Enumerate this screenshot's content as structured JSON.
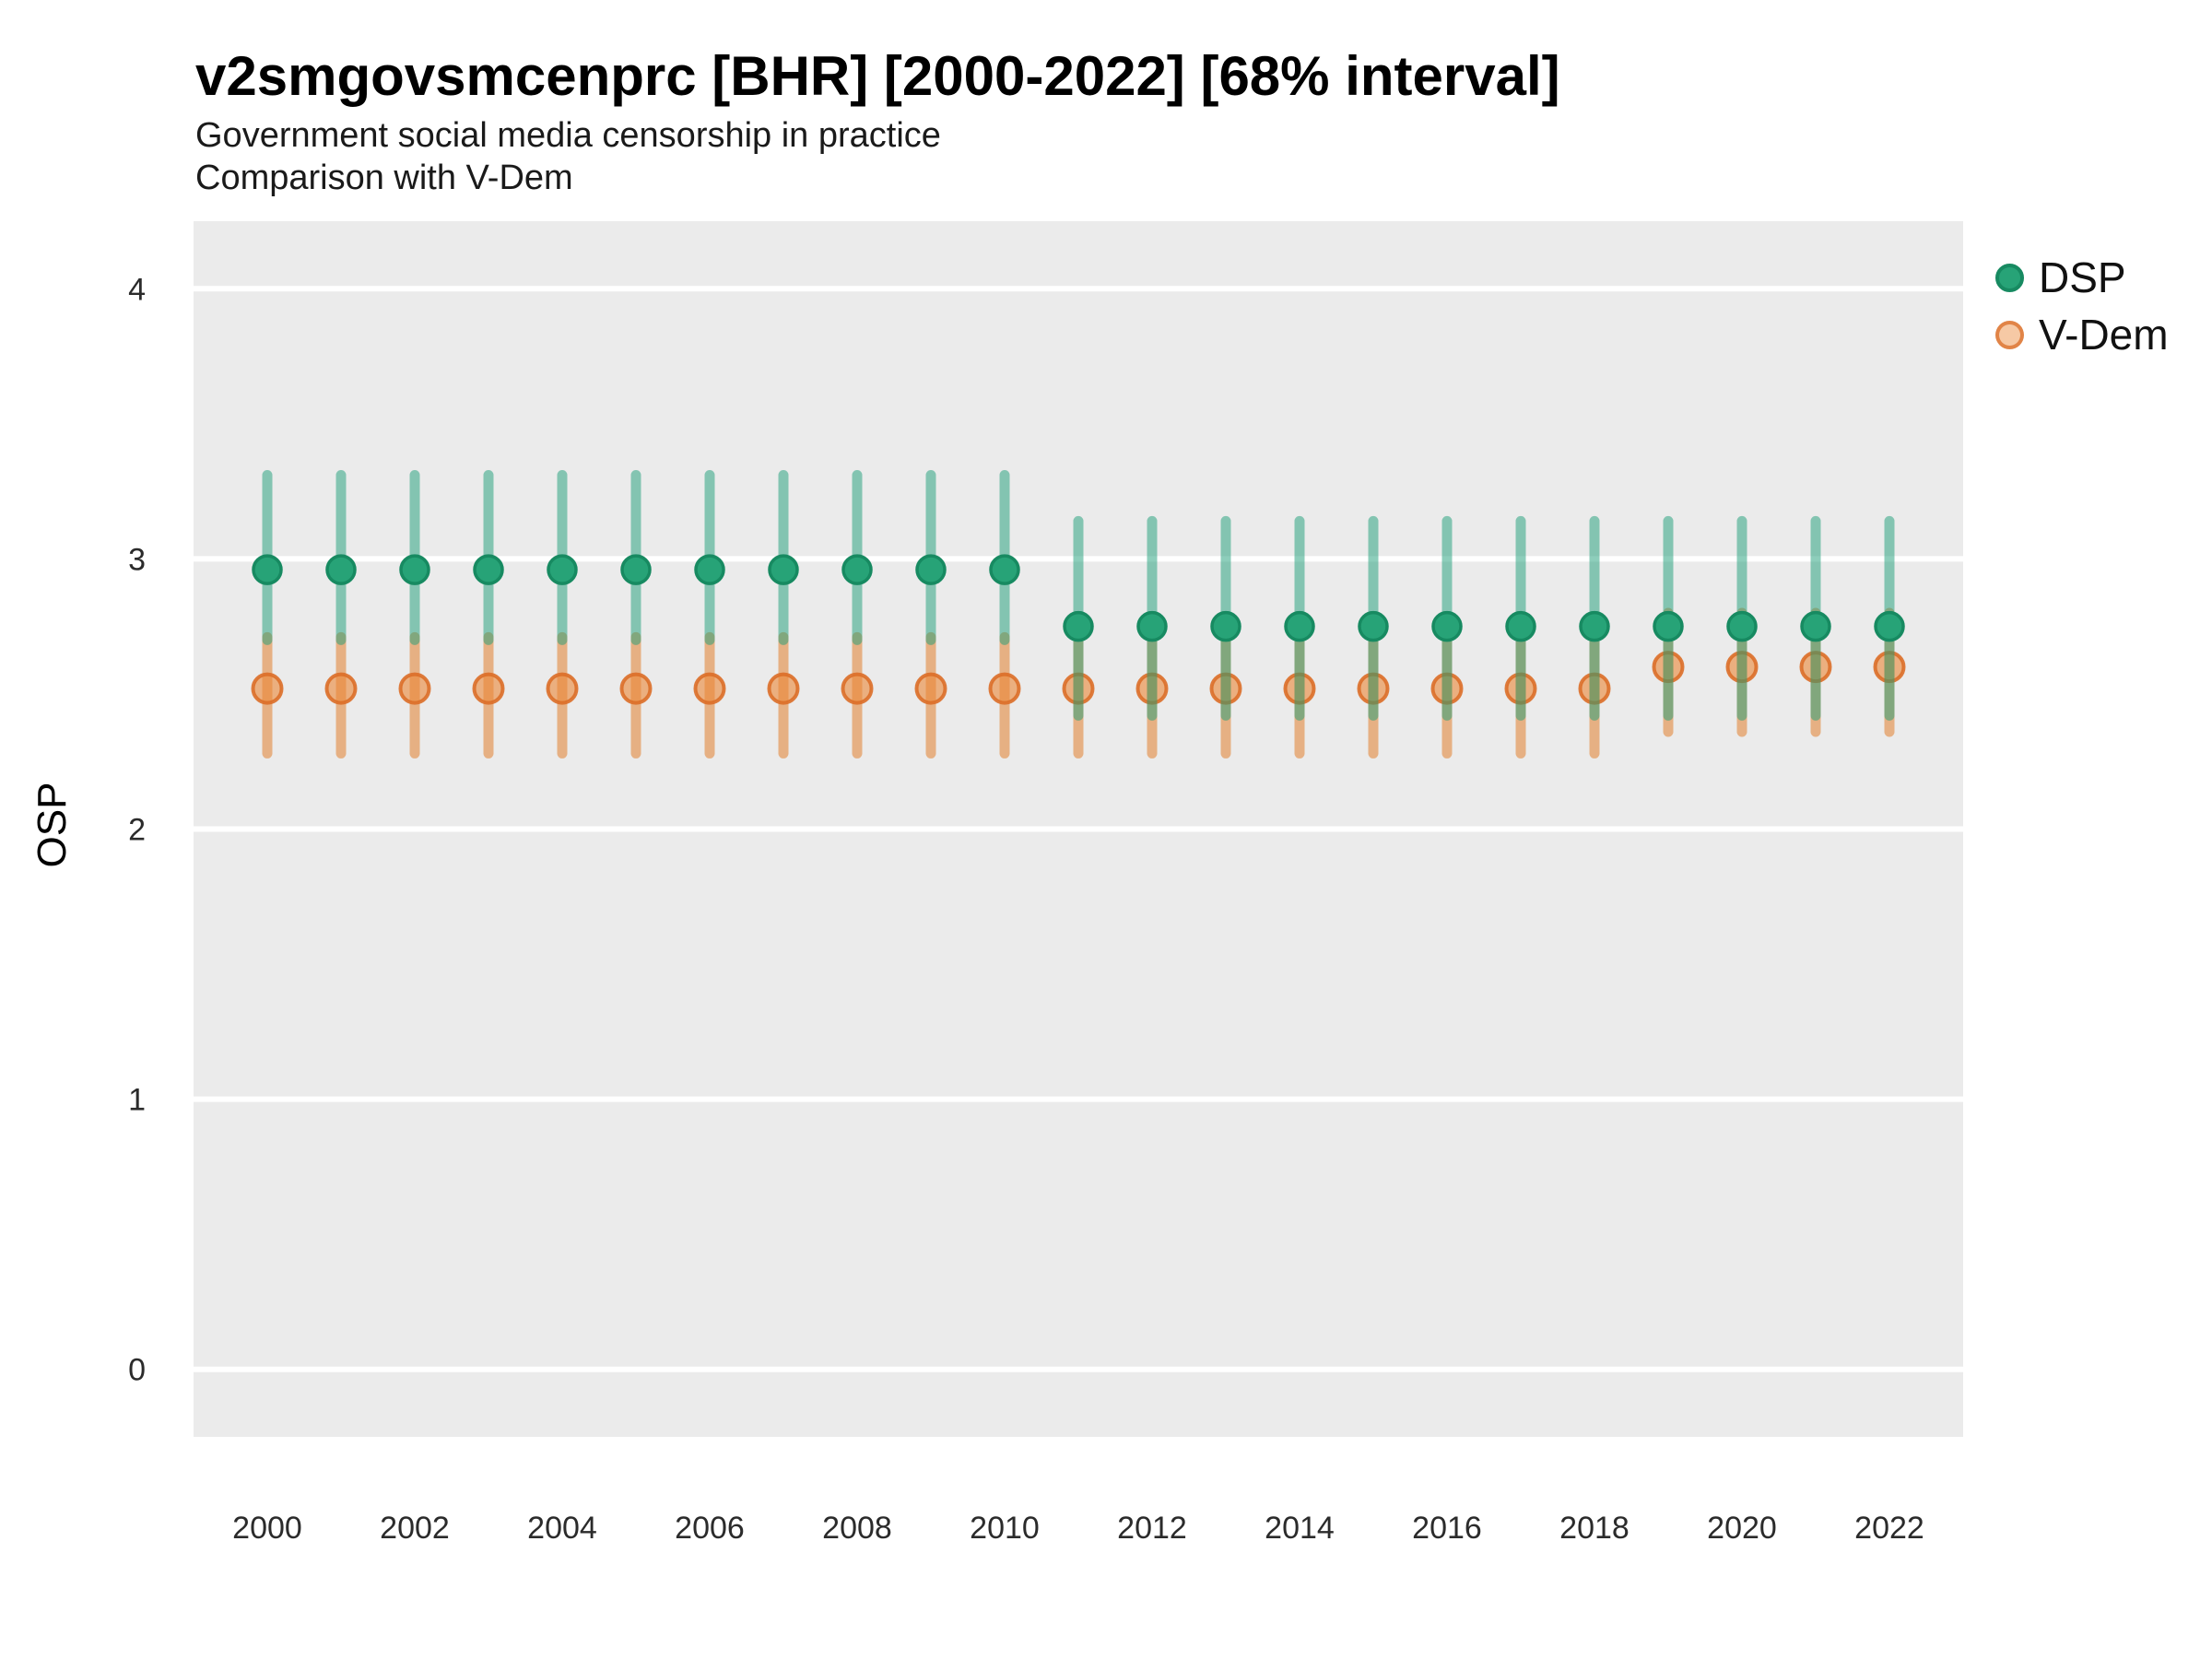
{
  "title": "v2smgovsmcenprc [BHR] [2000-2022] [68% interval]",
  "subtitle_line1": "Government social media censorship in practice",
  "subtitle_line2": "Comparison with V-Dem",
  "y_axis_title": "OSP",
  "legend": {
    "position": "right",
    "items": [
      {
        "id": "dsp",
        "label": "DSP"
      },
      {
        "id": "vdem",
        "label": "V-Dem"
      }
    ]
  },
  "colors": {
    "panel_bg": "#ebebeb",
    "gridline": "#ffffff",
    "axis_text": "#2b2b2b",
    "dsp_point_fill": "#27a377",
    "dsp_point_stroke": "#178a61",
    "dsp_bar": "rgba(27,158,119,0.5)",
    "vdem_point_fill": "rgba(235,135,55,0.6)",
    "vdem_point_stroke": "rgba(219,110,40,0.9)",
    "vdem_bar": "rgba(226,127,45,0.55)"
  },
  "chart_data": {
    "type": "pointrange",
    "title": "v2smgovsmcenprc [BHR] [2000-2022] [68% interval]",
    "xlabel": "",
    "ylabel": "OSP",
    "interval": "68%",
    "x": [
      2000,
      2001,
      2002,
      2003,
      2004,
      2005,
      2006,
      2007,
      2008,
      2009,
      2010,
      2011,
      2012,
      2013,
      2014,
      2015,
      2016,
      2017,
      2018,
      2019,
      2020,
      2021,
      2022
    ],
    "xticks": [
      2000,
      2002,
      2004,
      2006,
      2008,
      2010,
      2012,
      2014,
      2016,
      2018,
      2020,
      2022
    ],
    "yticks": [
      0,
      1,
      2,
      3,
      4
    ],
    "xlim": [
      1999,
      2023
    ],
    "ylim": [
      -0.25,
      4.25
    ],
    "grid": "horizontal-major-only",
    "legend_position": "right",
    "series": [
      {
        "id": "dsp",
        "name": "DSP",
        "mean": [
          2.96,
          2.96,
          2.96,
          2.96,
          2.96,
          2.96,
          2.96,
          2.96,
          2.96,
          2.96,
          2.96,
          2.75,
          2.75,
          2.75,
          2.75,
          2.75,
          2.75,
          2.75,
          2.75,
          2.75,
          2.75,
          2.75,
          2.75
        ],
        "lower": [
          2.7,
          2.7,
          2.7,
          2.7,
          2.7,
          2.7,
          2.7,
          2.7,
          2.7,
          2.7,
          2.7,
          2.42,
          2.42,
          2.42,
          2.42,
          2.42,
          2.42,
          2.42,
          2.42,
          2.42,
          2.42,
          2.42,
          2.42
        ],
        "upper": [
          3.31,
          3.31,
          3.31,
          3.31,
          3.31,
          3.31,
          3.31,
          3.31,
          3.31,
          3.31,
          3.31,
          3.14,
          3.14,
          3.14,
          3.14,
          3.14,
          3.14,
          3.14,
          3.14,
          3.14,
          3.14,
          3.14,
          3.14
        ]
      },
      {
        "id": "vdem",
        "name": "V-Dem",
        "mean": [
          2.52,
          2.52,
          2.52,
          2.52,
          2.52,
          2.52,
          2.52,
          2.52,
          2.52,
          2.52,
          2.52,
          2.52,
          2.52,
          2.52,
          2.52,
          2.52,
          2.52,
          2.52,
          2.52,
          2.6,
          2.6,
          2.6,
          2.6
        ],
        "lower": [
          2.28,
          2.28,
          2.28,
          2.28,
          2.28,
          2.28,
          2.28,
          2.28,
          2.28,
          2.28,
          2.28,
          2.28,
          2.28,
          2.28,
          2.28,
          2.28,
          2.28,
          2.28,
          2.28,
          2.36,
          2.36,
          2.36,
          2.36
        ],
        "upper": [
          2.71,
          2.71,
          2.71,
          2.71,
          2.71,
          2.71,
          2.71,
          2.71,
          2.71,
          2.71,
          2.71,
          2.71,
          2.71,
          2.71,
          2.71,
          2.71,
          2.71,
          2.71,
          2.71,
          2.8,
          2.8,
          2.8,
          2.8
        ]
      }
    ]
  }
}
